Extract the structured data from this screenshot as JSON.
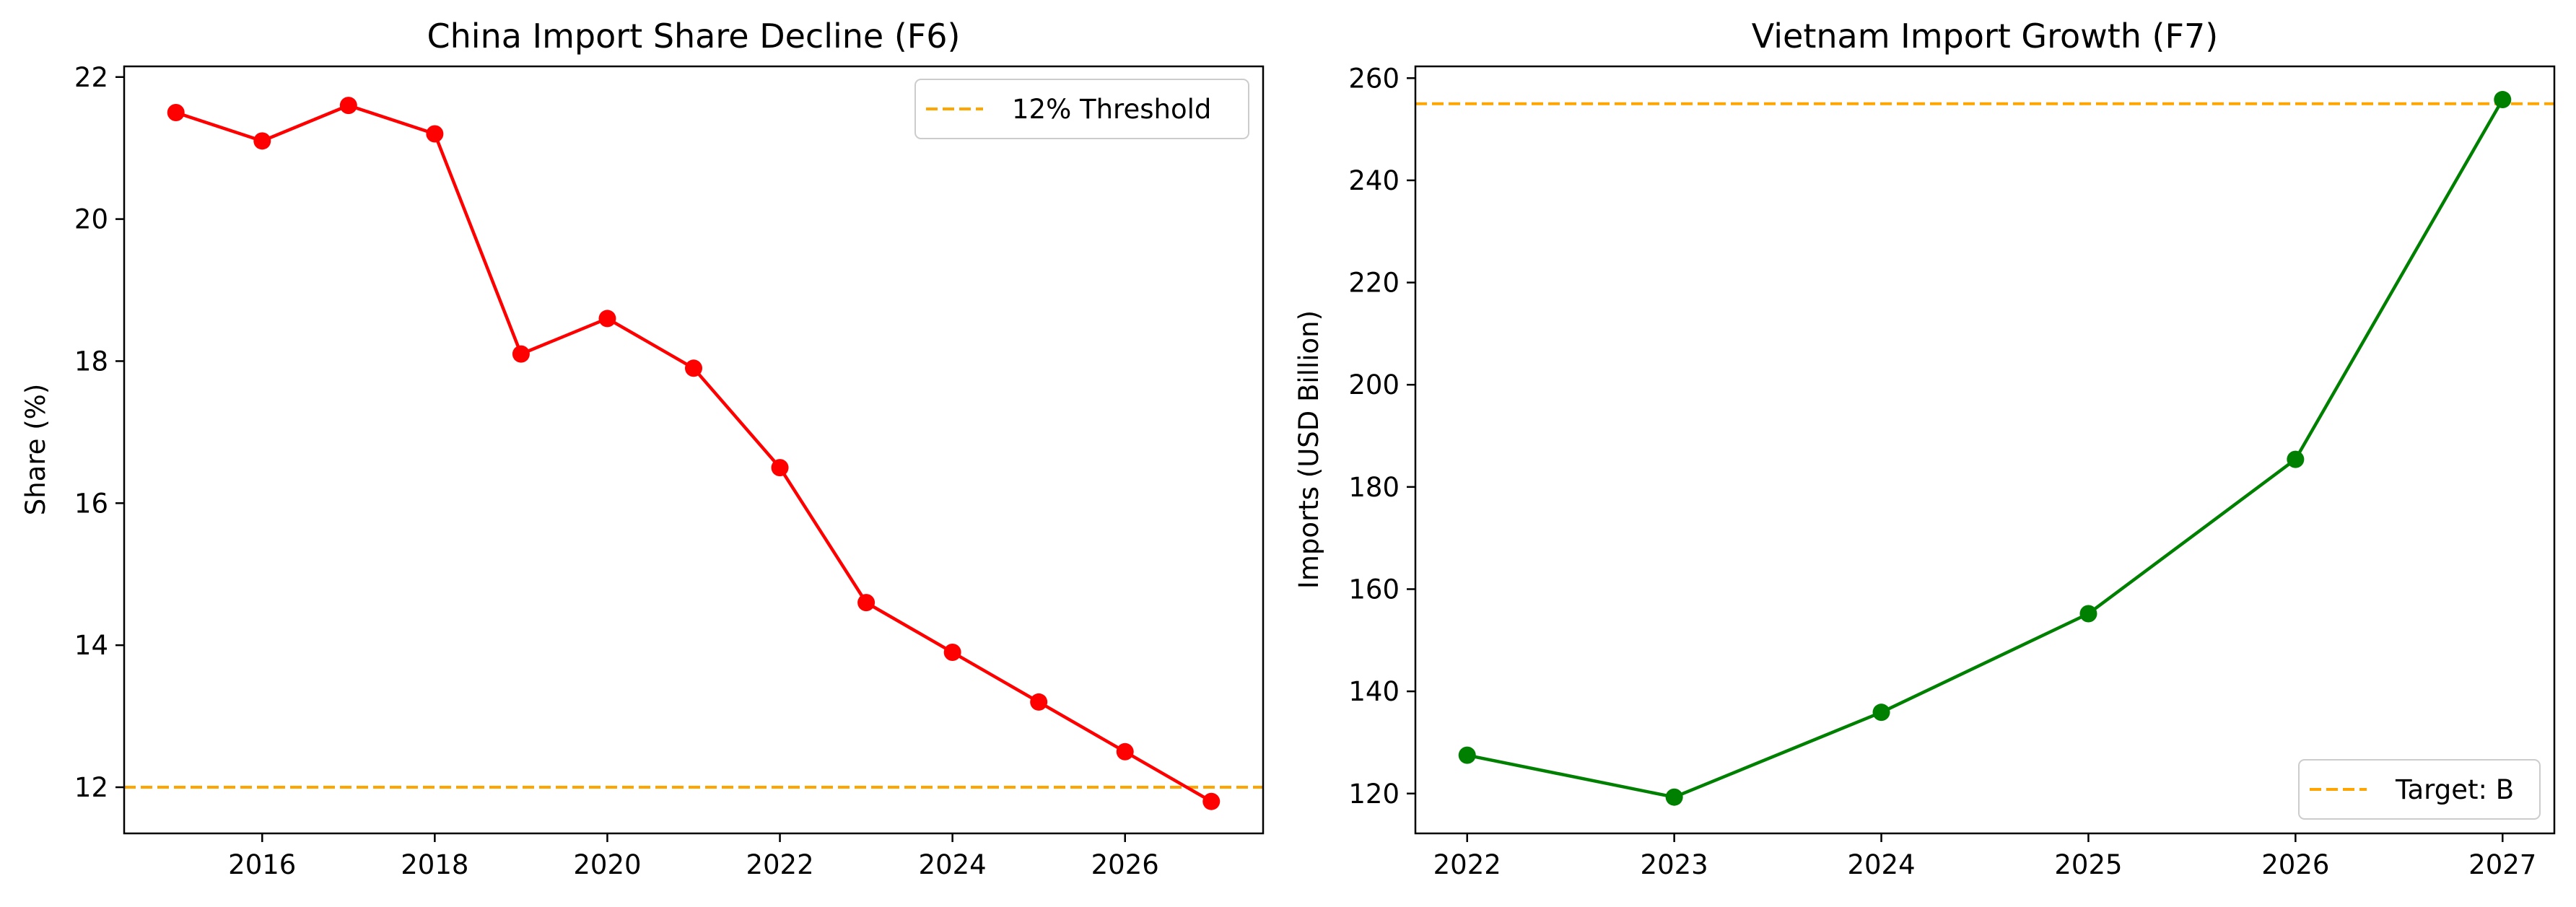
{
  "chart_data": [
    {
      "type": "line",
      "title": "China Import Share Decline (F6)",
      "xlabel": "",
      "ylabel": "Share (%)",
      "xlim": [
        2014.4,
        2027.6
      ],
      "ylim": [
        11.35,
        22.15
      ],
      "xticks": [
        2016,
        2018,
        2020,
        2022,
        2024,
        2026
      ],
      "yticks": [
        12,
        14,
        16,
        18,
        20,
        22
      ],
      "grid": false,
      "legend": "top-right",
      "series": [
        {
          "values": [
            21.5,
            21.1,
            21.6,
            21.2,
            18.1,
            18.6,
            17.9,
            16.5,
            14.6,
            13.9,
            13.2,
            12.5,
            11.8
          ],
          "x": [
            2015,
            2016,
            2017,
            2018,
            2019,
            2020,
            2021,
            2022,
            2023,
            2024,
            2025,
            2026,
            2027
          ],
          "color": "#ff0000",
          "marker": "circle"
        }
      ],
      "reference_lines": [
        {
          "orientation": "horizontal",
          "value": 12,
          "label": "12% Threshold",
          "color": "#ffa500",
          "style": "dashed"
        }
      ]
    },
    {
      "type": "line",
      "title": "Vietnam Import Growth (F7)",
      "xlabel": "",
      "ylabel": "Imports (USD Billion)",
      "xlim": [
        2021.75,
        2027.25
      ],
      "ylim": [
        112.2,
        262.3
      ],
      "xticks": [
        2022,
        2023,
        2024,
        2025,
        2026,
        2027
      ],
      "yticks": [
        120,
        140,
        160,
        180,
        200,
        220,
        240,
        260
      ],
      "grid": false,
      "legend": "bottom-right",
      "series": [
        {
          "values": [
            127.5,
            119.3,
            135.9,
            155.2,
            185.4,
            255.8
          ],
          "x": [
            2022,
            2023,
            2024,
            2025,
            2026,
            2027
          ],
          "color": "#008000",
          "marker": "circle"
        }
      ],
      "reference_lines": [
        {
          "orientation": "horizontal",
          "value": 255,
          "label": "Target: B",
          "color": "#ffa500",
          "style": "dashed"
        }
      ]
    }
  ]
}
